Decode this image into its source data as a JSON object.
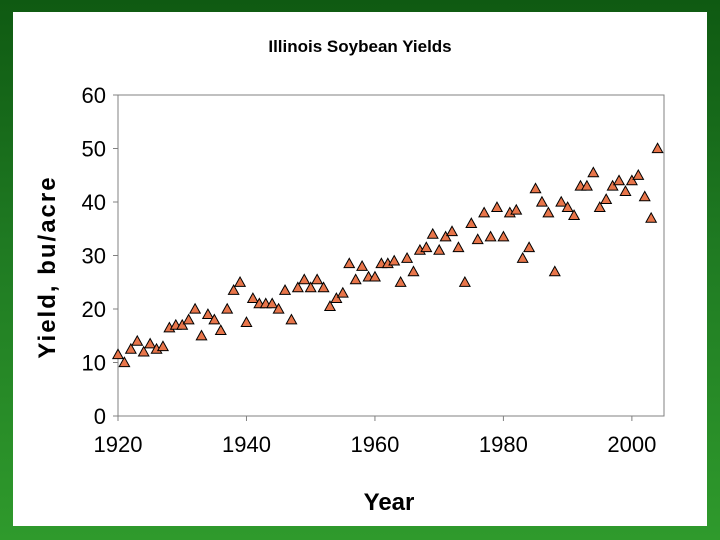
{
  "colors": {
    "background_green": "#1f7a22",
    "marker_fill": "#e8754a",
    "marker_stroke": "#000000",
    "plot_border": "#808080"
  },
  "chart_data": {
    "type": "scatter",
    "title": "Illinois Soybean Yields",
    "xlabel": "Year",
    "ylabel": "Yield, bu/acre",
    "xlim": [
      1920,
      2005
    ],
    "ylim": [
      0,
      60
    ],
    "x_ticks": [
      "1920",
      "1940",
      "1960",
      "1980",
      "2000"
    ],
    "y_ticks": [
      "0",
      "10",
      "20",
      "30",
      "40",
      "50",
      "60"
    ],
    "grid": false,
    "legend": "none",
    "series": [
      {
        "name": "Illinois soybean yield",
        "marker": "triangle",
        "points": [
          [
            1920,
            11.5
          ],
          [
            1921,
            10.0
          ],
          [
            1922,
            12.5
          ],
          [
            1923,
            14.0
          ],
          [
            1924,
            12.0
          ],
          [
            1925,
            13.5
          ],
          [
            1926,
            12.5
          ],
          [
            1927,
            13.0
          ],
          [
            1928,
            16.5
          ],
          [
            1929,
            17.0
          ],
          [
            1930,
            17.0
          ],
          [
            1931,
            18.0
          ],
          [
            1932,
            20.0
          ],
          [
            1933,
            15.0
          ],
          [
            1934,
            19.0
          ],
          [
            1935,
            18.0
          ],
          [
            1936,
            16.0
          ],
          [
            1937,
            20.0
          ],
          [
            1938,
            23.5
          ],
          [
            1939,
            25.0
          ],
          [
            1940,
            17.5
          ],
          [
            1941,
            22.0
          ],
          [
            1942,
            21.0
          ],
          [
            1943,
            21.0
          ],
          [
            1944,
            21.0
          ],
          [
            1945,
            20.0
          ],
          [
            1946,
            23.5
          ],
          [
            1947,
            18.0
          ],
          [
            1948,
            24.0
          ],
          [
            1949,
            25.5
          ],
          [
            1950,
            24.0
          ],
          [
            1951,
            25.5
          ],
          [
            1952,
            24.0
          ],
          [
            1953,
            20.5
          ],
          [
            1954,
            22.0
          ],
          [
            1955,
            23.0
          ],
          [
            1956,
            28.5
          ],
          [
            1957,
            25.5
          ],
          [
            1958,
            28.0
          ],
          [
            1959,
            26.0
          ],
          [
            1960,
            26.0
          ],
          [
            1961,
            28.5
          ],
          [
            1962,
            28.5
          ],
          [
            1963,
            29.0
          ],
          [
            1964,
            25.0
          ],
          [
            1965,
            29.5
          ],
          [
            1966,
            27.0
          ],
          [
            1967,
            31.0
          ],
          [
            1968,
            31.5
          ],
          [
            1969,
            34.0
          ],
          [
            1970,
            31.0
          ],
          [
            1971,
            33.5
          ],
          [
            1972,
            34.5
          ],
          [
            1973,
            31.5
          ],
          [
            1974,
            25.0
          ],
          [
            1975,
            36.0
          ],
          [
            1976,
            33.0
          ],
          [
            1977,
            38.0
          ],
          [
            1978,
            33.5
          ],
          [
            1979,
            39.0
          ],
          [
            1980,
            33.5
          ],
          [
            1981,
            38.0
          ],
          [
            1982,
            38.5
          ],
          [
            1983,
            29.5
          ],
          [
            1984,
            31.5
          ],
          [
            1985,
            42.5
          ],
          [
            1986,
            40.0
          ],
          [
            1987,
            38.0
          ],
          [
            1988,
            27.0
          ],
          [
            1989,
            40.0
          ],
          [
            1990,
            39.0
          ],
          [
            1991,
            37.5
          ],
          [
            1992,
            43.0
          ],
          [
            1993,
            43.0
          ],
          [
            1994,
            45.5
          ],
          [
            1995,
            39.0
          ],
          [
            1996,
            40.5
          ],
          [
            1997,
            43.0
          ],
          [
            1998,
            44.0
          ],
          [
            1999,
            42.0
          ],
          [
            2000,
            44.0
          ],
          [
            2001,
            45.0
          ],
          [
            2002,
            41.0
          ],
          [
            2003,
            37.0
          ],
          [
            2004,
            50.0
          ]
        ]
      }
    ]
  }
}
